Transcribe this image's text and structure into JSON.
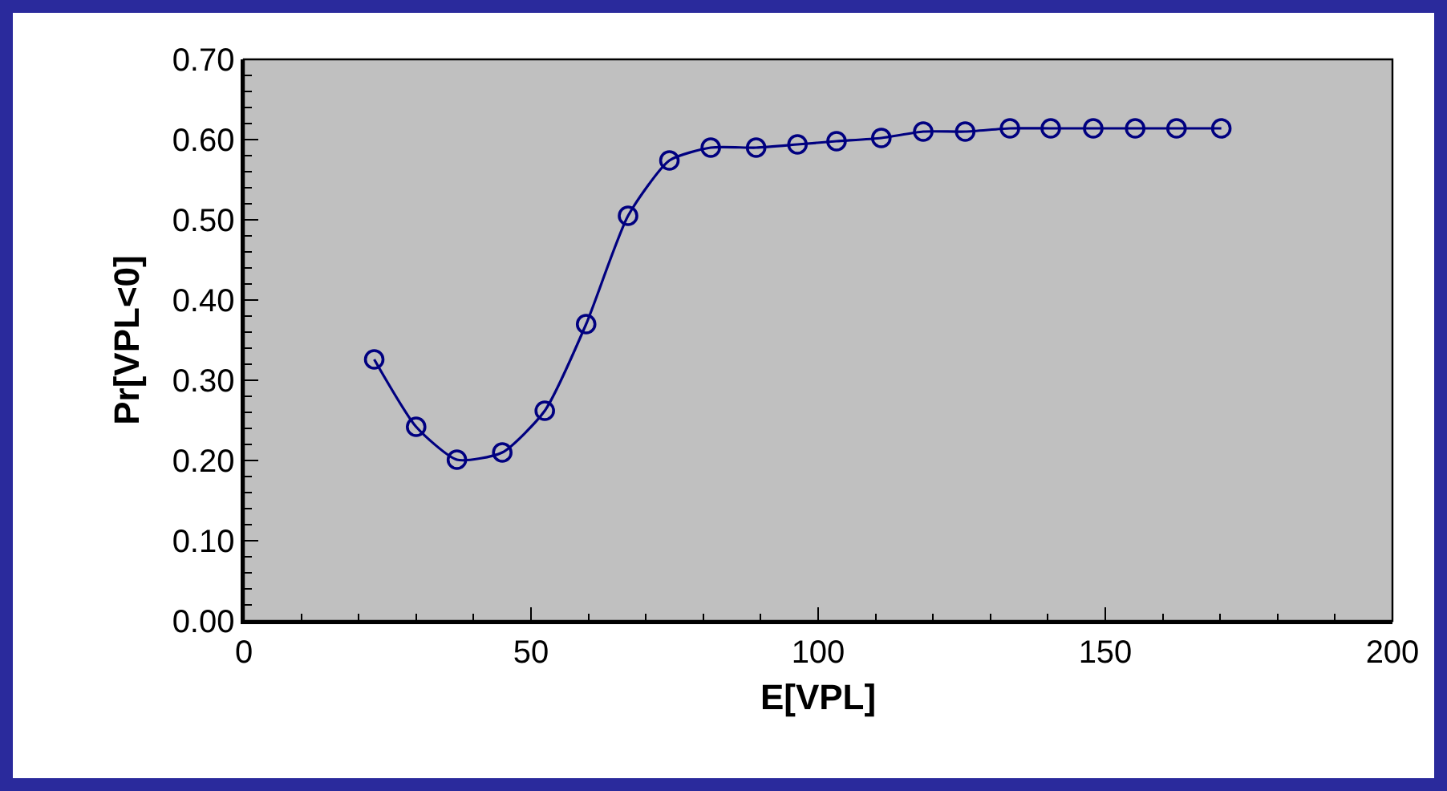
{
  "chart_data": {
    "type": "line",
    "xlabel": "E[VPL]",
    "ylabel": "Pr[VPL<0]",
    "x": [
      22.7,
      30.0,
      37.1,
      45.0,
      52.4,
      59.6,
      66.9,
      74.1,
      81.3,
      89.2,
      96.4,
      103.2,
      111.0,
      118.3,
      125.6,
      133.4,
      140.5,
      147.9,
      155.2,
      162.4,
      170.2
    ],
    "series": [
      {
        "color": "#000080",
        "values": [
          0.326,
          0.242,
          0.201,
          0.21,
          0.262,
          0.37,
          0.505,
          0.574,
          0.59,
          0.59,
          0.594,
          0.598,
          0.602,
          0.61,
          0.61,
          0.614,
          0.614,
          0.614,
          0.614,
          0.614,
          0.614
        ]
      }
    ],
    "marker": "circle",
    "line_style": "solid",
    "xlim": [
      0,
      200
    ],
    "ylim": [
      0,
      0.7
    ],
    "xticks": [
      0,
      {
        "value": 10,
        "label": null
      },
      {
        "value": 20,
        "label": null
      },
      {
        "value": 30,
        "label": null
      },
      {
        "value": 40,
        "label": null
      },
      50,
      {
        "value": 60,
        "label": null
      },
      {
        "value": 70,
        "label": null
      },
      {
        "value": 80,
        "label": null
      },
      {
        "value": 90,
        "label": null
      },
      100,
      {
        "value": 110,
        "label": null
      },
      {
        "value": 120,
        "label": null
      },
      {
        "value": 130,
        "label": null
      },
      {
        "value": 140,
        "label": null
      },
      150,
      {
        "value": 160,
        "label": null
      },
      {
        "value": 170,
        "label": null
      },
      {
        "value": 180,
        "label": null
      },
      {
        "value": 190,
        "label": null
      },
      200
    ],
    "yticks": [
      {
        "value": 0,
        "label": "0.00"
      },
      {
        "value": 0.02,
        "label": null
      },
      {
        "value": 0.04,
        "label": null
      },
      {
        "value": 0.06,
        "label": null
      },
      {
        "value": 0.08,
        "label": null
      },
      {
        "value": 0.1,
        "label": "0.10"
      },
      {
        "value": 0.12,
        "label": null
      },
      {
        "value": 0.14,
        "label": null
      },
      {
        "value": 0.16,
        "label": null
      },
      {
        "value": 0.18,
        "label": null
      },
      {
        "value": 0.2,
        "label": "0.20"
      },
      {
        "value": 0.22,
        "label": null
      },
      {
        "value": 0.24,
        "label": null
      },
      {
        "value": 0.26,
        "label": null
      },
      {
        "value": 0.28,
        "label": null
      },
      {
        "value": 0.3,
        "label": "0.30"
      },
      {
        "value": 0.32,
        "label": null
      },
      {
        "value": 0.34,
        "label": null
      },
      {
        "value": 0.36,
        "label": null
      },
      {
        "value": 0.38,
        "label": null
      },
      {
        "value": 0.4,
        "label": "0.40"
      },
      {
        "value": 0.42,
        "label": null
      },
      {
        "value": 0.44,
        "label": null
      },
      {
        "value": 0.46,
        "label": null
      },
      {
        "value": 0.48,
        "label": null
      },
      {
        "value": 0.5,
        "label": "0.50"
      },
      {
        "value": 0.52,
        "label": null
      },
      {
        "value": 0.54,
        "label": null
      },
      {
        "value": 0.56,
        "label": null
      },
      {
        "value": 0.58,
        "label": null
      },
      {
        "value": 0.6,
        "label": "0.60"
      },
      {
        "value": 0.62,
        "label": null
      },
      {
        "value": 0.64,
        "label": null
      },
      {
        "value": 0.66,
        "label": null
      },
      {
        "value": 0.68,
        "label": null
      },
      {
        "value": 0.7,
        "label": "0.70"
      }
    ]
  }
}
